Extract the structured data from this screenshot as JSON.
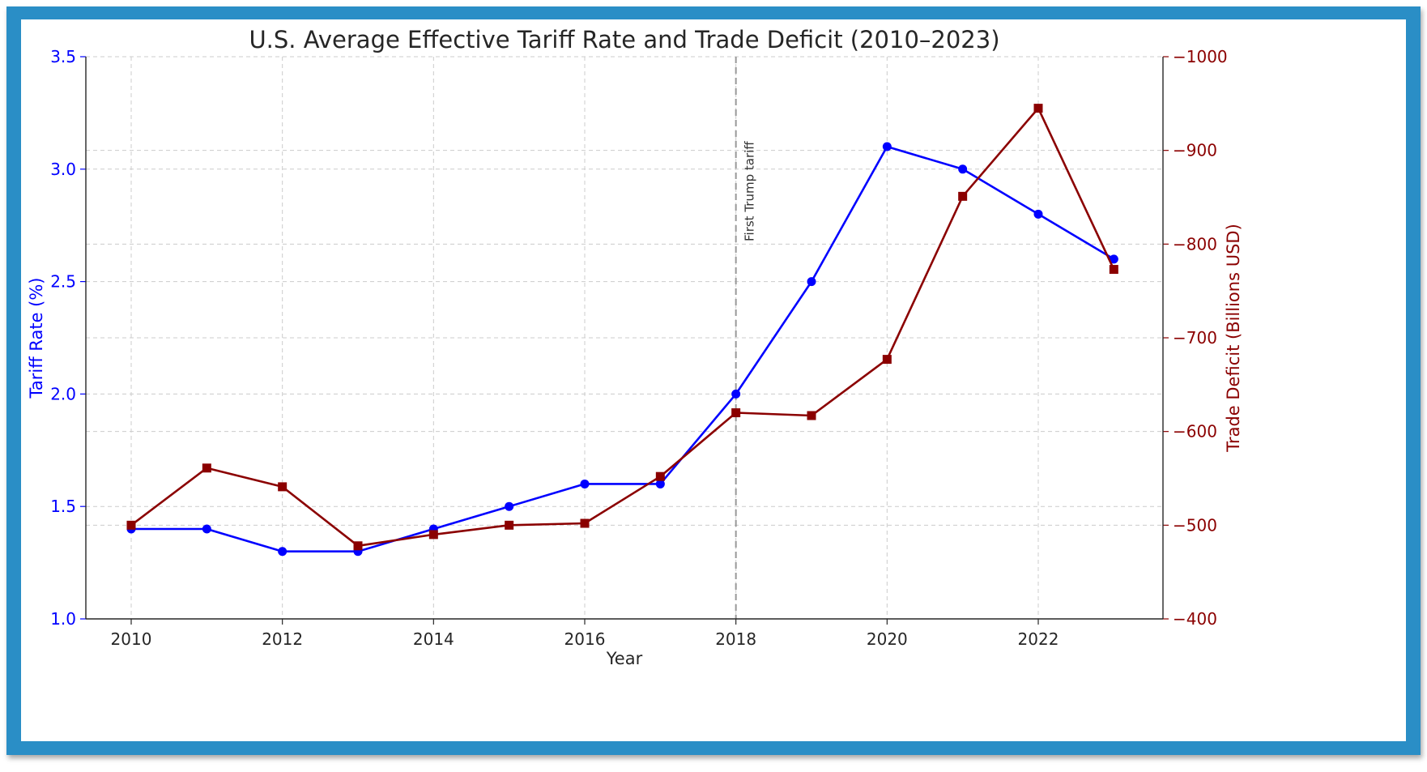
{
  "chart_data": {
    "type": "line",
    "title": "U.S. Average Effective Tariff Rate and Trade Deficit (2010–2023)",
    "xlabel": "Year",
    "ylabel_left": "Tariff Rate (%)",
    "ylabel_right": "Trade Deficit (Billions USD)",
    "x": [
      2010,
      2011,
      2012,
      2013,
      2014,
      2015,
      2016,
      2017,
      2018,
      2019,
      2020,
      2021,
      2022,
      2023
    ],
    "xticks": [
      2010,
      2012,
      2014,
      2016,
      2018,
      2020,
      2022
    ],
    "xtick_labels": [
      "2010",
      "2012",
      "2014",
      "2016",
      "2018",
      "2020",
      "2022"
    ],
    "xlim": [
      2009.4,
      2023.65
    ],
    "left_axis": {
      "ylim": [
        1.0,
        3.5
      ],
      "ticks": [
        1.0,
        1.5,
        2.0,
        2.5,
        3.0,
        3.5
      ],
      "tick_labels": [
        "1.0",
        "1.5",
        "2.0",
        "2.5",
        "3.0",
        "3.5"
      ],
      "color": "#0000ff"
    },
    "right_axis": {
      "ylim": [
        -400,
        -1000
      ],
      "ticks": [
        -400,
        -500,
        -600,
        -700,
        -800,
        -900,
        -1000
      ],
      "tick_labels": [
        "−400",
        "−500",
        "−600",
        "−700",
        "−800",
        "−900",
        "−1000"
      ],
      "color": "#8b0000"
    },
    "series": [
      {
        "name": "Tariff Rate",
        "axis": "left",
        "color": "#0000ff",
        "marker": "circle",
        "values": [
          1.4,
          1.4,
          1.3,
          1.3,
          1.4,
          1.5,
          1.6,
          1.6,
          2.0,
          2.5,
          3.1,
          3.0,
          2.8,
          2.6
        ]
      },
      {
        "name": "Trade Deficit",
        "axis": "right",
        "color": "#8b0000",
        "marker": "square",
        "values": [
          -500,
          -561,
          -541,
          -478,
          -490,
          -500,
          -502,
          -552,
          -620,
          -617,
          -677,
          -851,
          -945,
          -773
        ]
      }
    ],
    "annotation": {
      "x": 2018,
      "text": "First Trump tariff",
      "color": "#999999"
    },
    "grid": true
  }
}
